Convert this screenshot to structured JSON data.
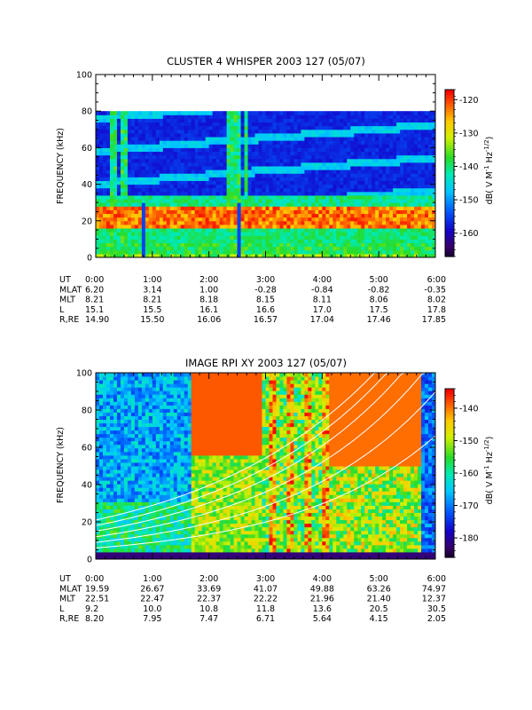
{
  "chart_data": [
    {
      "type": "heatmap",
      "title": "CLUSTER 4 WHISPER 2003 127 (05/07)",
      "ylabel": "FREQUENCY (kHz)",
      "ylim": [
        0,
        100
      ],
      "yticks": [
        "0",
        "20",
        "40",
        "60",
        "80",
        "100"
      ],
      "colorbar": {
        "label_main": "dB( V M",
        "label_sup1": "-1",
        "label_mid": " Hz",
        "label_sup2": "-1/2",
        "label_end": ")",
        "range": [
          -167,
          -117
        ],
        "ticks": [
          "-120",
          "-130",
          "-140",
          "-150",
          "-160"
        ]
      },
      "data_ceiling_khz": 80,
      "ephemeris": {
        "labels": [
          "UT",
          "MLAT",
          "MLT",
          "L",
          "R,RE"
        ],
        "columns": [
          [
            "0:00",
            "6.20",
            "8.21",
            "15.1",
            "14.90"
          ],
          [
            "1:00",
            "3.14",
            "8.21",
            "15.5",
            "15.50"
          ],
          [
            "2:00",
            "1.00",
            "8.18",
            "16.1",
            "16.06"
          ],
          [
            "3:00",
            "-0.28",
            "8.15",
            "16.6",
            "16.57"
          ],
          [
            "4:00",
            "-0.84",
            "8.11",
            "17.0",
            "17.04"
          ],
          [
            "5:00",
            "-0.82",
            "8.06",
            "17.5",
            "17.46"
          ],
          [
            "6:00",
            "-0.35",
            "8.02",
            "17.8",
            "17.85"
          ]
        ]
      }
    },
    {
      "type": "heatmap",
      "title": "IMAGE RPI XY 2003 127 (05/07)",
      "ylabel": "FREQUENCY (kHz)",
      "ylim": [
        0,
        100
      ],
      "yticks": [
        "0",
        "20",
        "40",
        "60",
        "80",
        "100"
      ],
      "colorbar": {
        "label_main": "dB( V M",
        "label_sup1": "-1",
        "label_mid": " Hz",
        "label_sup2": "-1/2",
        "label_end": ")",
        "range": [
          -186,
          -134
        ],
        "ticks": [
          "-140",
          "-150",
          "-160",
          "-170",
          "-180"
        ]
      },
      "data_ceiling_khz": 100,
      "ephemeris": {
        "labels": [
          "UT",
          "MLAT",
          "MLT",
          "L",
          "R,RE"
        ],
        "columns": [
          [
            "0:00",
            "19.59",
            "22.51",
            "9.2",
            "8.20"
          ],
          [
            "1:00",
            "26.67",
            "22.47",
            "10.0",
            "7.95"
          ],
          [
            "2:00",
            "33.69",
            "22.37",
            "10.8",
            "7.47"
          ],
          [
            "3:00",
            "41.07",
            "22.22",
            "11.8",
            "6.71"
          ],
          [
            "4:00",
            "49.88",
            "21.96",
            "13.6",
            "5.64"
          ],
          [
            "5:00",
            "63.26",
            "21.40",
            "20.5",
            "4.15"
          ],
          [
            "6:00",
            "74.97",
            "12.37",
            "30.5",
            "2.05"
          ]
        ]
      }
    }
  ]
}
